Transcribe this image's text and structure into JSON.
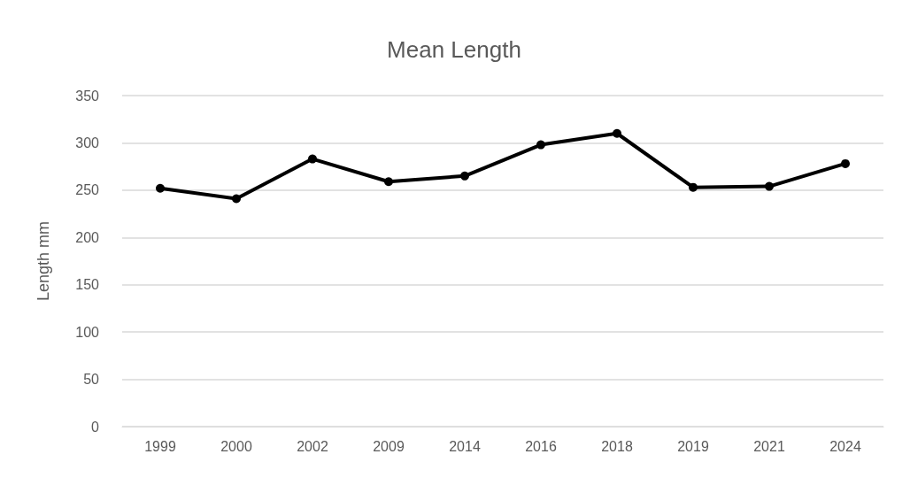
{
  "chart_data": {
    "type": "line",
    "title": "Mean Length",
    "ylabel": "Length mm",
    "categories": [
      "1999",
      "2000",
      "2002",
      "2009",
      "2014",
      "2016",
      "2018",
      "2019",
      "2021",
      "2024"
    ],
    "series": [
      {
        "color": "#000000",
        "values": [
          252,
          241,
          283,
          259,
          265,
          298,
          310,
          253,
          254,
          278
        ]
      }
    ],
    "ylim": [
      0,
      350
    ],
    "yticks": [
      0,
      50,
      100,
      150,
      200,
      250,
      300,
      350
    ],
    "grid": "y",
    "marker": "circle",
    "line_style": "solid"
  }
}
